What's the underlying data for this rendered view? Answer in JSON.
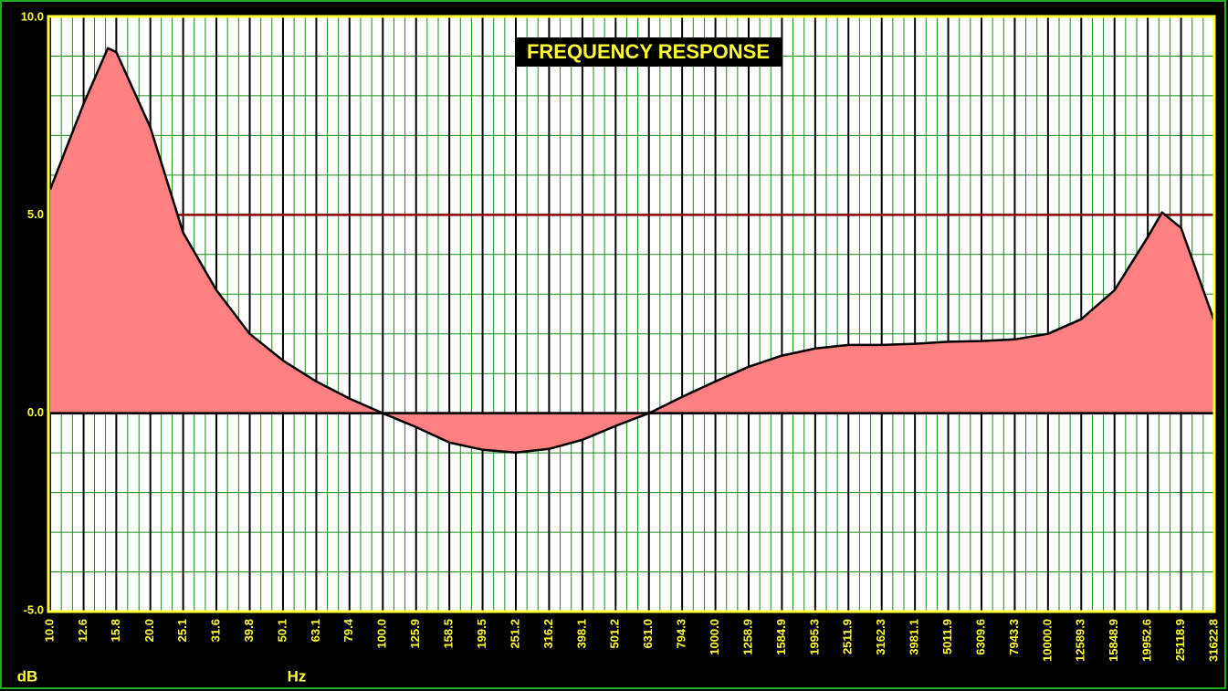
{
  "chart_data": {
    "type": "area",
    "title": "FREQUENCY RESPONSE",
    "x_label": "Hz",
    "y_label": "dB",
    "x_scale": "log",
    "xlim": [
      10,
      31622.8
    ],
    "ylim": [
      -5,
      10
    ],
    "yticks": [
      {
        "value": -5,
        "label": "-5.0"
      },
      {
        "value": 0,
        "label": "0.0"
      },
      {
        "value": 5,
        "label": "5.0"
      },
      {
        "value": 10,
        "label": "10.0"
      }
    ],
    "xticks": [
      {
        "value": 10,
        "label": "10.0"
      },
      {
        "value": 12.6,
        "label": "12.6"
      },
      {
        "value": 15.8,
        "label": "15.8"
      },
      {
        "value": 20,
        "label": "20.0"
      },
      {
        "value": 25.1,
        "label": "25.1"
      },
      {
        "value": 31.6,
        "label": "31.6"
      },
      {
        "value": 39.8,
        "label": "39.8"
      },
      {
        "value": 50.1,
        "label": "50.1"
      },
      {
        "value": 63.1,
        "label": "63.1"
      },
      {
        "value": 79.4,
        "label": "79.4"
      },
      {
        "value": 100,
        "label": "100.0"
      },
      {
        "value": 125.9,
        "label": "125.9"
      },
      {
        "value": 158.5,
        "label": "158.5"
      },
      {
        "value": 199.5,
        "label": "199.5"
      },
      {
        "value": 251.2,
        "label": "251.2"
      },
      {
        "value": 316.2,
        "label": "316.2"
      },
      {
        "value": 398.1,
        "label": "398.1"
      },
      {
        "value": 501.2,
        "label": "501.2"
      },
      {
        "value": 631,
        "label": "631.0"
      },
      {
        "value": 794.3,
        "label": "794.3"
      },
      {
        "value": 1000,
        "label": "1000.0"
      },
      {
        "value": 1258.9,
        "label": "1258.9"
      },
      {
        "value": 1584.9,
        "label": "1584.9"
      },
      {
        "value": 1995.3,
        "label": "1995.3"
      },
      {
        "value": 2511.9,
        "label": "2511.9"
      },
      {
        "value": 3162.3,
        "label": "3162.3"
      },
      {
        "value": 3981.1,
        "label": "3981.1"
      },
      {
        "value": 5011.9,
        "label": "5011.9"
      },
      {
        "value": 6309.6,
        "label": "6309.6"
      },
      {
        "value": 7943.3,
        "label": "7943.3"
      },
      {
        "value": 10000,
        "label": "10000.0"
      },
      {
        "value": 12589.3,
        "label": "12589.3"
      },
      {
        "value": 15848.9,
        "label": "15848.9"
      },
      {
        "value": 19952.6,
        "label": "19952.6"
      },
      {
        "value": 25118.9,
        "label": "25118.9"
      },
      {
        "value": 31622.8,
        "label": "31622.8"
      }
    ],
    "x": [
      10,
      12.6,
      14.9,
      15.8,
      20,
      25.1,
      31.6,
      39.8,
      50.1,
      63.1,
      79.4,
      100,
      125.9,
      158.5,
      199.5,
      251.2,
      316.2,
      398.1,
      501.2,
      631,
      794.3,
      1000,
      1258.9,
      1584.9,
      1995.3,
      2511.9,
      3162.3,
      3981.1,
      5011.9,
      6309.6,
      7943.3,
      10000,
      12589.3,
      15848.9,
      19952.6,
      22030,
      25118.9,
      31622.8
    ],
    "values": [
      5.64,
      7.8,
      9.2,
      9.1,
      7.2,
      4.55,
      3.1,
      2.0,
      1.33,
      0.8,
      0.37,
      0,
      -0.35,
      -0.74,
      -0.92,
      -0.99,
      -0.9,
      -0.67,
      -0.32,
      0,
      0.41,
      0.8,
      1.17,
      1.45,
      1.63,
      1.72,
      1.72,
      1.75,
      1.8,
      1.82,
      1.86,
      2.0,
      2.37,
      3.1,
      4.44,
      5.06,
      4.67,
      2.32
    ],
    "fill_color": "#ff8080",
    "line_color": "#000000",
    "reference_line": {
      "value": 5,
      "color": "#8b0000"
    },
    "grid": true
  }
}
